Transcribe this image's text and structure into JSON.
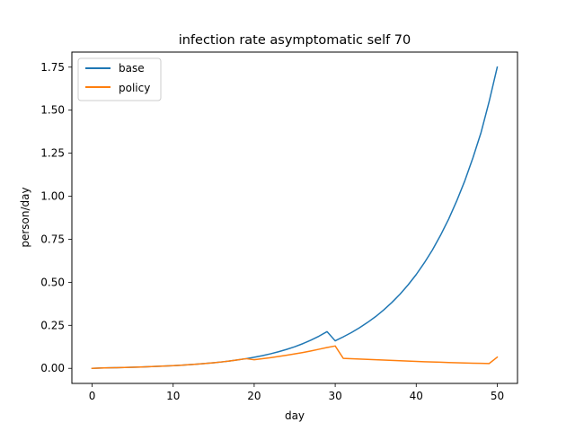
{
  "chart_data": {
    "type": "line",
    "title": "infection rate asymptomatic self 70",
    "xlabel": "day",
    "ylabel": "person/day",
    "xlim": [
      -2.5,
      52.5
    ],
    "ylim": [
      -0.0875,
      1.8375
    ],
    "xticks": [
      0,
      10,
      20,
      30,
      40,
      50
    ],
    "yticks": [
      0.0,
      0.25,
      0.5,
      0.75,
      1.0,
      1.25,
      1.5,
      1.75
    ],
    "ytick_labels": [
      "0.00",
      "0.25",
      "0.50",
      "0.75",
      "1.00",
      "1.25",
      "1.50",
      "1.75"
    ],
    "grid": false,
    "legend": "upper-left",
    "series": [
      {
        "name": "base",
        "color": "#1f77b4",
        "x": [
          0,
          1,
          2,
          3,
          4,
          5,
          6,
          7,
          8,
          9,
          10,
          11,
          12,
          13,
          14,
          15,
          16,
          17,
          18,
          19,
          20,
          21,
          22,
          23,
          24,
          25,
          26,
          27,
          28,
          29,
          30,
          31,
          32,
          33,
          34,
          35,
          36,
          37,
          38,
          39,
          40,
          41,
          42,
          43,
          44,
          45,
          46,
          47,
          48,
          49,
          50
        ],
        "values": [
          0.0,
          0.0019,
          0.0029,
          0.004,
          0.0052,
          0.0065,
          0.0079,
          0.0095,
          0.0113,
          0.0134,
          0.0157,
          0.0183,
          0.0212,
          0.0245,
          0.0283,
          0.0325,
          0.0374,
          0.0429,
          0.0492,
          0.0563,
          0.0645,
          0.0737,
          0.0843,
          0.0963,
          0.11,
          0.1256,
          0.1434,
          0.1637,
          0.1869,
          0.2133,
          0.16,
          0.183,
          0.208,
          0.236,
          0.267,
          0.301,
          0.34,
          0.383,
          0.431,
          0.485,
          0.545,
          0.613,
          0.688,
          0.773,
          0.867,
          0.973,
          1.09,
          1.223,
          1.37,
          1.55,
          1.75
        ]
      },
      {
        "name": "policy",
        "color": "#ff7f0e",
        "x": [
          0,
          1,
          2,
          3,
          4,
          5,
          6,
          7,
          8,
          9,
          10,
          11,
          12,
          13,
          14,
          15,
          16,
          17,
          18,
          19,
          20,
          21,
          22,
          23,
          24,
          25,
          26,
          27,
          28,
          29,
          30,
          31,
          32,
          33,
          34,
          35,
          36,
          37,
          38,
          39,
          40,
          41,
          42,
          43,
          44,
          45,
          46,
          47,
          48,
          49,
          50
        ],
        "values": [
          0.0,
          0.0019,
          0.0029,
          0.004,
          0.0052,
          0.0065,
          0.0079,
          0.0095,
          0.0113,
          0.0134,
          0.0157,
          0.0183,
          0.0212,
          0.0245,
          0.0283,
          0.0325,
          0.0374,
          0.0429,
          0.0492,
          0.0563,
          0.05,
          0.056,
          0.062,
          0.069,
          0.076,
          0.084,
          0.092,
          0.101,
          0.111,
          0.121,
          0.13,
          0.058,
          0.056,
          0.054,
          0.052,
          0.05,
          0.048,
          0.046,
          0.044,
          0.042,
          0.04,
          0.0385,
          0.037,
          0.0355,
          0.034,
          0.0325,
          0.031,
          0.03,
          0.029,
          0.028,
          0.065
        ]
      }
    ]
  }
}
